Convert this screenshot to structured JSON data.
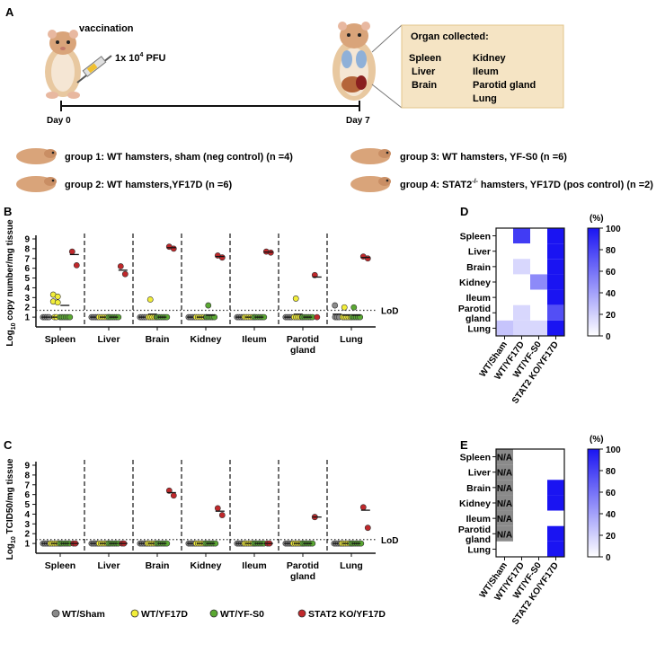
{
  "panels": {
    "a": "A",
    "b": "B",
    "c": "C",
    "d": "D",
    "e": "E"
  },
  "timeline": {
    "vaccination": "vaccination",
    "dose_base": "1x 10",
    "dose_exp": "4",
    "dose_unit": " PFU",
    "day0": "Day 0",
    "day7": "Day 7"
  },
  "organ_box": {
    "title": "Organ collected:",
    "col1": [
      "Spleen",
      "Liver",
      "Brain"
    ],
    "col2": [
      "Kidney",
      "Ileum",
      "Parotid gland",
      "Lung"
    ]
  },
  "groups": {
    "g1": "group 1: WT hamsters, sham (neg control) (n =4)",
    "g2": "group 2: WT hamsters,YF17D (n =6)",
    "g3": "group 3: WT hamsters, YF-S0 (n =6)",
    "g4_pre": "group 4: STAT2",
    "g4_sup": "-/-",
    "g4_post": " hamsters, YF17D (pos control) (n =2)"
  },
  "legend": {
    "items": [
      {
        "label": "WT/Sham",
        "color": "#8a8a8a"
      },
      {
        "label": "WT/YF17D",
        "color": "#f2ee3a"
      },
      {
        "label": "WT/YF-S0",
        "color": "#5aa832"
      },
      {
        "label": "STAT2 KO/YF17D",
        "color": "#c0282b"
      }
    ]
  },
  "colorbar": {
    "unit": "(%)",
    "ticks": [
      "100",
      "80",
      "60",
      "40",
      "20",
      "0"
    ],
    "colors": [
      "#ffffff",
      "#1a14f2"
    ]
  },
  "chart_data": [
    {
      "type": "scatter",
      "id": "B",
      "ylabel_pre": "Log",
      "ylabel_sub": "10",
      "ylabel_post": " copy number/mg tissue",
      "ylim": [
        0,
        9
      ],
      "yticks": [
        "1",
        "2",
        "3",
        "4",
        "5",
        "6",
        "7",
        "8",
        "9"
      ],
      "lod": 1.7,
      "lod_label": "LoD",
      "categories": [
        "Spleen",
        "Liver",
        "Brain",
        "Kidney",
        "Ileum",
        "Parotid gland",
        "Lung"
      ],
      "category_lines": [
        [
          "Spleen"
        ],
        [
          "Liver"
        ],
        [
          "Brain"
        ],
        [
          "Kidney"
        ],
        [
          "Ileum"
        ],
        [
          "Parotid",
          "gland"
        ],
        [
          "Lung"
        ]
      ],
      "series": [
        {
          "name": "WT/Sham",
          "values": [
            [
              1,
              1,
              1,
              1
            ],
            [
              1,
              1,
              1,
              1
            ],
            [
              1,
              1,
              1,
              1
            ],
            [
              1,
              1,
              1,
              1
            ],
            [
              1,
              1,
              1,
              1
            ],
            [
              1,
              1,
              1,
              1
            ],
            [
              2.2,
              1,
              1,
              1
            ]
          ]
        },
        {
          "name": "WT/YF17D",
          "values": [
            [
              3.3,
              3.1,
              2.6,
              2.5,
              1,
              1
            ],
            [
              1,
              1,
              1,
              1,
              1,
              1
            ],
            [
              2.8,
              1,
              1,
              1,
              1,
              1
            ],
            [
              1,
              1,
              1,
              1,
              1,
              1
            ],
            [
              1,
              1,
              1,
              1,
              1,
              1
            ],
            [
              2.9,
              1,
              1,
              1,
              1,
              1
            ],
            [
              2.0,
              1,
              1,
              1,
              1,
              1
            ]
          ]
        },
        {
          "name": "WT/YF-S0",
          "values": [
            [
              1,
              1,
              1,
              1,
              1,
              1
            ],
            [
              1,
              1,
              1,
              1,
              1,
              1
            ],
            [
              1,
              1,
              1,
              1,
              1,
              1
            ],
            [
              2.2,
              1,
              1,
              1,
              1,
              1
            ],
            [
              1,
              1,
              1,
              1,
              1,
              1
            ],
            [
              1,
              1,
              1,
              1,
              1,
              1
            ],
            [
              2.0,
              1,
              1,
              1,
              1,
              1
            ]
          ]
        },
        {
          "name": "STAT2 KO/YF17D",
          "values": [
            [
              7.7,
              6.3
            ],
            [
              6.2,
              5.4
            ],
            [
              8.2,
              8.0
            ],
            [
              7.3,
              7.1
            ],
            [
              7.7,
              7.6
            ],
            [
              5.3,
              1.0
            ],
            [
              7.2,
              7.0
            ]
          ]
        }
      ],
      "means": [
        [
          1,
          1,
          2.2,
          7.4
        ],
        [
          1,
          1,
          1,
          5.8
        ],
        [
          1,
          1.3,
          1,
          8.1
        ],
        [
          1,
          1,
          1.2,
          7.2
        ],
        [
          1,
          1,
          1,
          7.65
        ],
        [
          1,
          1.3,
          1,
          5.1
        ],
        [
          1.3,
          1.2,
          1.2,
          7.1
        ]
      ]
    },
    {
      "type": "scatter",
      "id": "C",
      "ylabel_pre": "Log",
      "ylabel_sub": "10",
      "ylabel_post": " TCID50/mg tissue",
      "ylim": [
        0,
        9
      ],
      "yticks": [
        "1",
        "2",
        "3",
        "4",
        "5",
        "6",
        "7",
        "8",
        "9"
      ],
      "lod": 1.4,
      "lod_label": "LoD",
      "categories": [
        "Spleen",
        "Liver",
        "Brain",
        "Kidney",
        "Ileum",
        "Parotid gland",
        "Lung"
      ],
      "category_lines": [
        [
          "Spleen"
        ],
        [
          "Liver"
        ],
        [
          "Brain"
        ],
        [
          "Kidney"
        ],
        [
          "Ileum"
        ],
        [
          "Parotid",
          "gland"
        ],
        [
          "Lung"
        ]
      ],
      "series": [
        {
          "name": "WT/Sham",
          "values": [
            [
              1,
              1,
              1,
              1
            ],
            [
              1,
              1,
              1,
              1
            ],
            [
              1,
              1,
              1,
              1
            ],
            [
              1,
              1,
              1,
              1
            ],
            [
              1,
              1,
              1,
              1
            ],
            [
              1,
              1,
              1,
              1
            ],
            [
              1,
              1,
              1,
              1
            ]
          ]
        },
        {
          "name": "WT/YF17D",
          "values": [
            [
              1,
              1,
              1,
              1,
              1,
              1
            ],
            [
              1,
              1,
              1,
              1,
              1,
              1
            ],
            [
              1,
              1,
              1,
              1,
              1,
              1
            ],
            [
              1,
              1,
              1,
              1,
              1,
              1
            ],
            [
              1,
              1,
              1,
              1,
              1,
              1
            ],
            [
              1,
              1,
              1,
              1,
              1,
              1
            ],
            [
              1,
              1,
              1,
              1,
              1,
              1
            ]
          ]
        },
        {
          "name": "WT/YF-S0",
          "values": [
            [
              1,
              1,
              1,
              1,
              1,
              1
            ],
            [
              1,
              1,
              1,
              1,
              1,
              1
            ],
            [
              1,
              1,
              1,
              1,
              1,
              1
            ],
            [
              1,
              1,
              1,
              1,
              1,
              1
            ],
            [
              1,
              1,
              1,
              1,
              1,
              1
            ],
            [
              1,
              1,
              1,
              1,
              1,
              1
            ],
            [
              1,
              1,
              1,
              1,
              1,
              1
            ]
          ]
        },
        {
          "name": "STAT2 KO/YF17D",
          "values": [
            [
              1,
              1
            ],
            [
              1,
              1
            ],
            [
              6.4,
              5.9
            ],
            [
              4.6,
              3.9
            ],
            [
              1,
              1
            ],
            [
              3.7,
              3.7
            ],
            [
              4.7,
              2.6
            ]
          ]
        }
      ],
      "means": [
        [
          1,
          1,
          1,
          1
        ],
        [
          1,
          1,
          1,
          1
        ],
        [
          1,
          1,
          1,
          6.2
        ],
        [
          1,
          1,
          1,
          4.3
        ],
        [
          1,
          1,
          1,
          1
        ],
        [
          1,
          1,
          1,
          3.7
        ],
        [
          1,
          1,
          1,
          4.4
        ]
      ]
    },
    {
      "type": "heatmap",
      "id": "D",
      "rows": [
        "Spleen",
        "Liver",
        "Brain",
        "Kidney",
        "Ileum",
        "Parotid gland",
        "Lung"
      ],
      "row_lines": [
        [
          "Spleen"
        ],
        [
          "Liver"
        ],
        [
          "Brain"
        ],
        [
          "Kidney"
        ],
        [
          "Ileum"
        ],
        [
          "Parotid",
          "gland"
        ],
        [
          "Lung"
        ]
      ],
      "columns": [
        "WT/Sham",
        "WT/YF17D",
        "WT/YF-S0",
        "STAT2 KO/YF17D"
      ],
      "values": [
        [
          0,
          83,
          0,
          100
        ],
        [
          0,
          0,
          0,
          100
        ],
        [
          0,
          17,
          0,
          100
        ],
        [
          0,
          0,
          50,
          100
        ],
        [
          0,
          0,
          0,
          100
        ],
        [
          0,
          17,
          0,
          75
        ],
        [
          25,
          17,
          17,
          100
        ]
      ]
    },
    {
      "type": "heatmap",
      "id": "E",
      "rows": [
        "Spleen",
        "Liver",
        "Brain",
        "Kidney",
        "Ileum",
        "Parotid gland",
        "Lung"
      ],
      "row_lines": [
        [
          "Spleen"
        ],
        [
          "Liver"
        ],
        [
          "Brain"
        ],
        [
          "Kidney"
        ],
        [
          "Ileum"
        ],
        [
          "Parotid",
          "gland"
        ],
        [
          "Lung"
        ]
      ],
      "columns": [
        "WT/Sham",
        "WT/YF17D",
        "WT/YF-S0",
        "STAT2 KO/YF17D"
      ],
      "na_label": "N/A",
      "values": [
        [
          "N/A",
          0,
          0,
          0
        ],
        [
          "N/A",
          0,
          0,
          0
        ],
        [
          "N/A",
          0,
          0,
          100
        ],
        [
          "N/A",
          0,
          0,
          100
        ],
        [
          "N/A",
          0,
          0,
          0
        ],
        [
          "N/A",
          0,
          0,
          100
        ],
        [
          null,
          0,
          0,
          100
        ]
      ]
    }
  ]
}
